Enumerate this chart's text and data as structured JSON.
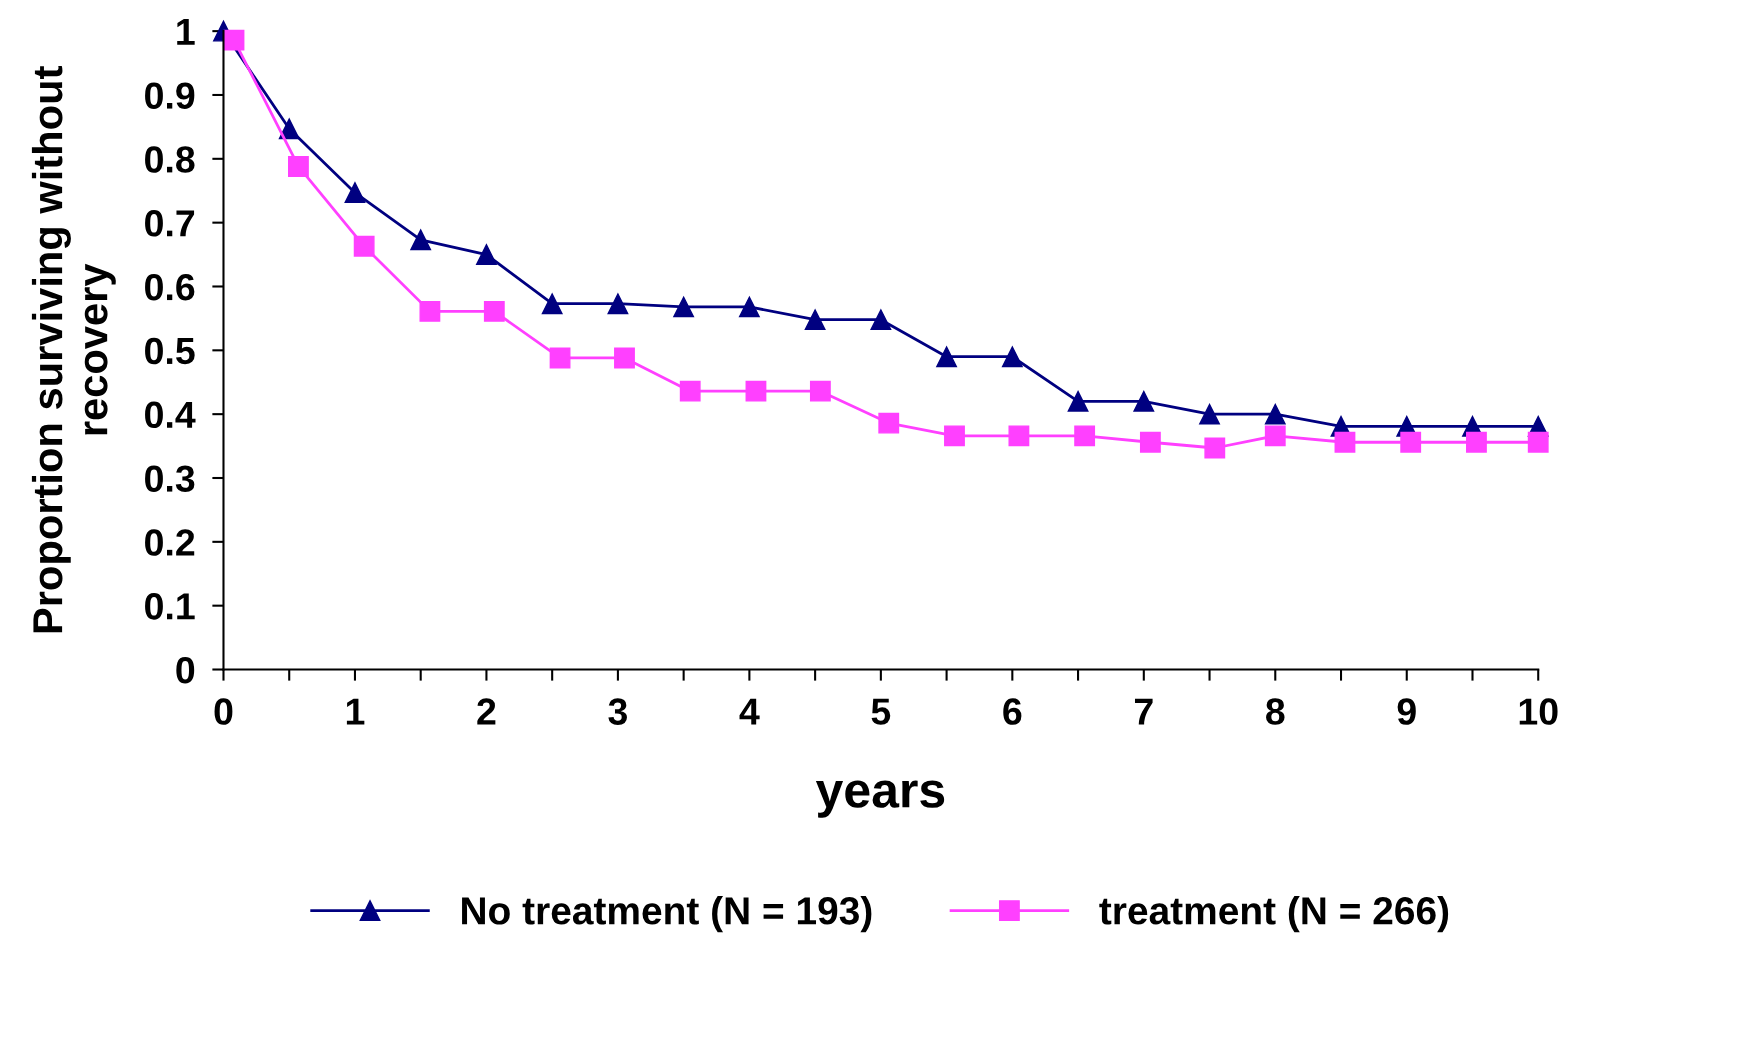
{
  "chart_data": {
    "type": "line",
    "xlabel": "years",
    "ylabel": "Proportion surviving without recovery",
    "xlim": [
      0,
      10
    ],
    "ylim": [
      0,
      1
    ],
    "xticks": [
      0,
      {
        "value": 0.5,
        "label": null
      },
      1,
      {
        "value": 1.5,
        "label": null
      },
      2,
      {
        "value": 2.5,
        "label": null
      },
      3,
      {
        "value": 3.5,
        "label": null
      },
      4,
      {
        "value": 4.5,
        "label": null
      },
      5,
      {
        "value": 5.5,
        "label": null
      },
      6,
      {
        "value": 6.5,
        "label": null
      },
      7,
      {
        "value": 7.5,
        "label": null
      },
      8,
      {
        "value": 8.5,
        "label": null
      },
      9,
      {
        "value": 9.5,
        "label": null
      },
      10
    ],
    "yticks": [
      0,
      0.1,
      0.2,
      0.3,
      0.4,
      0.5,
      0.6,
      0.7,
      0.8,
      0.9,
      1
    ],
    "grid": false,
    "legend": "bottom",
    "line_style": "solid",
    "series": [
      {
        "name": "No treatment (N = 193)",
        "color": "#000080",
        "marker": "triangle",
        "x": [
          0,
          0.5,
          1,
          1.5,
          2,
          2.5,
          3,
          3.5,
          4,
          4.5,
          5,
          5.5,
          6,
          6.5,
          7,
          7.5,
          8,
          8.5,
          9,
          9.5,
          10
        ],
        "values": [
          1.0,
          0.847,
          0.747,
          0.673,
          0.65,
          0.573,
          0.573,
          0.568,
          0.568,
          0.548,
          0.548,
          0.49,
          0.49,
          0.42,
          0.42,
          0.4,
          0.4,
          0.381,
          0.381,
          0.381,
          0.381
        ]
      },
      {
        "name": "treatment (N = 266)",
        "color": "#ff40ff",
        "marker": "square",
        "x": [
          0.08,
          0.57,
          1.07,
          1.57,
          2.06,
          2.56,
          3.05,
          3.55,
          4.05,
          4.54,
          5.06,
          5.56,
          6.05,
          6.55,
          7.05,
          7.54,
          8.0,
          8.53,
          9.03,
          9.53,
          10.0
        ],
        "values": [
          0.986,
          0.788,
          0.663,
          0.561,
          0.561,
          0.488,
          0.488,
          0.436,
          0.436,
          0.436,
          0.386,
          0.366,
          0.366,
          0.366,
          0.356,
          0.347,
          0.366,
          0.356,
          0.356,
          0.356,
          0.356
        ]
      }
    ]
  }
}
